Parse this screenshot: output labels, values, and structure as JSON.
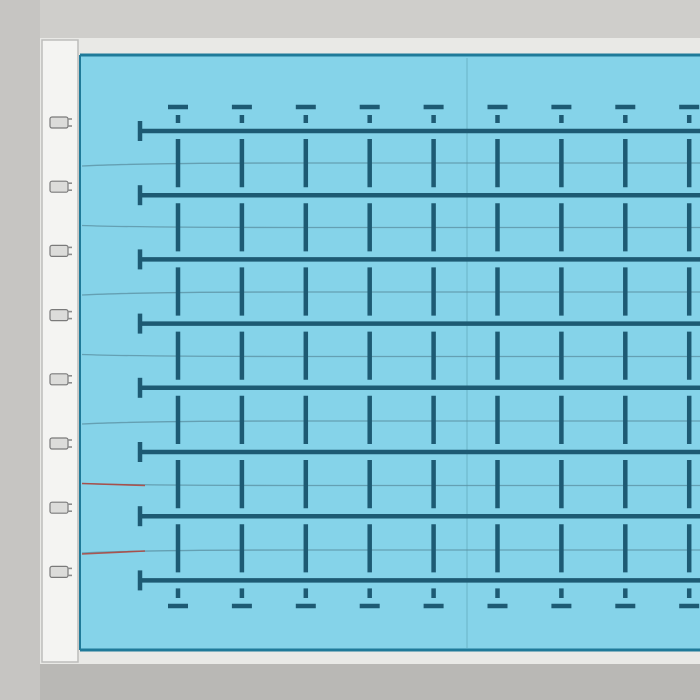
{
  "scene": {
    "subject": "aerial-view-swimming-pool",
    "colors": {
      "deck": "#cfcecb",
      "deck_dark": "#b9b8b5",
      "coping": "#f1f1ef",
      "water": "#7fd0e6",
      "water_light": "#93dbee",
      "water_edge": "#1f7a99",
      "lane_marking": "#1d5a73",
      "lane_rope": "#5a8fa0",
      "lane_rope_red": "#b2433a",
      "ladder": "#8d8d8d"
    }
  },
  "pool": {
    "lane_lines": 8,
    "vertical_markings": 9,
    "starting_blocks": 8,
    "lane_ropes": 7
  }
}
